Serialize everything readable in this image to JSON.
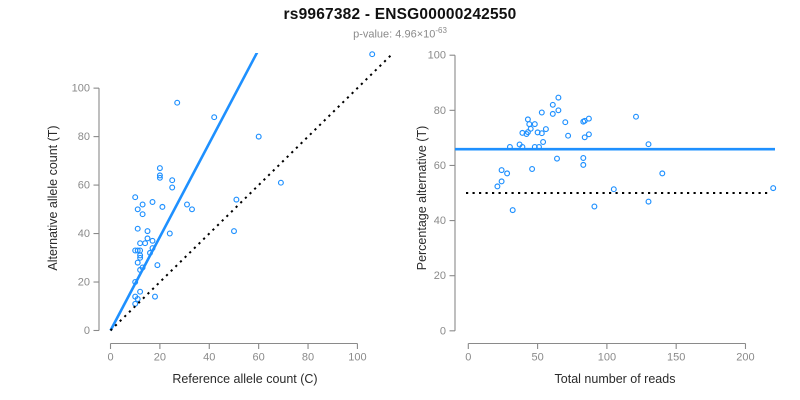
{
  "title": "rs9967382 - ENSG00000242550",
  "subtitle": {
    "label": "p-value: ",
    "value": "4.96×10",
    "exponent": "-63"
  },
  "colors": {
    "accent": "#1E90FF",
    "dotted_line": "#000000",
    "axis": "#8a8a8a",
    "tick_label": "#8a8a8a",
    "axis_title": "#2b2b2b",
    "title": "#111111",
    "subtitle": "#8a8a8a",
    "background": "#ffffff"
  },
  "chart_data": [
    {
      "type": "scatter",
      "panel": "left",
      "xlabel": "Reference allele count (C)",
      "ylabel": "Alternative allele count (T)",
      "xlim": [
        -4.66,
        113.6
      ],
      "ylim": [
        -5.37,
        114.5
      ],
      "xticks": [
        0,
        20,
        40,
        60,
        80,
        100
      ],
      "yticks": [
        0,
        20,
        40,
        60,
        80,
        100
      ],
      "grid": false,
      "legend": "none",
      "marker": "open-circle",
      "points": [
        [
          10,
          55
        ],
        [
          11,
          50
        ],
        [
          13,
          52
        ],
        [
          13,
          48
        ],
        [
          11,
          42
        ],
        [
          27,
          94
        ],
        [
          10,
          33
        ],
        [
          20,
          67
        ],
        [
          17,
          53
        ],
        [
          20,
          64
        ],
        [
          20,
          63
        ],
        [
          11,
          33
        ],
        [
          12,
          36
        ],
        [
          12,
          33
        ],
        [
          14,
          36
        ],
        [
          15,
          41
        ],
        [
          12,
          30
        ],
        [
          12,
          31
        ],
        [
          11,
          28
        ],
        [
          21,
          51
        ],
        [
          15,
          38
        ],
        [
          25,
          59
        ],
        [
          25,
          62
        ],
        [
          17,
          37
        ],
        [
          17,
          34
        ],
        [
          42,
          88
        ],
        [
          10,
          20
        ],
        [
          12,
          25
        ],
        [
          13,
          26
        ],
        [
          16,
          32
        ],
        [
          24,
          40
        ],
        [
          31,
          52
        ],
        [
          33,
          50
        ],
        [
          19,
          27
        ],
        [
          10,
          14
        ],
        [
          12,
          16
        ],
        [
          11,
          13
        ],
        [
          51,
          54
        ],
        [
          10,
          11
        ],
        [
          106,
          114
        ],
        [
          69,
          61
        ],
        [
          60,
          80
        ],
        [
          50,
          41
        ],
        [
          18,
          14
        ]
      ],
      "lines": [
        {
          "name": "fitted-ratio-line",
          "style": "solid",
          "color": "#1E90FF",
          "x1": 0,
          "y1": 0,
          "slope": 1.932
        },
        {
          "name": "identity-line",
          "style": "dotted",
          "color": "#000000",
          "x1": 0,
          "y1": 0,
          "slope": 1
        }
      ]
    },
    {
      "type": "scatter",
      "panel": "right",
      "xlabel": "Total number of reads",
      "ylabel": "Percentage alternative (T)",
      "xlim": [
        -9.6,
        221.3
      ],
      "ylim": [
        -4.6,
        100.8
      ],
      "xticks": [
        0,
        50,
        100,
        150,
        200
      ],
      "yticks": [
        0,
        20,
        40,
        60,
        80,
        100
      ],
      "grid": false,
      "legend": "none",
      "marker": "open-circle",
      "points": [
        [
          65,
          84.6
        ],
        [
          61,
          82
        ],
        [
          65,
          80
        ],
        [
          61,
          78.7
        ],
        [
          53,
          79.2
        ],
        [
          121,
          77.7
        ],
        [
          43,
          76.7
        ],
        [
          87,
          77
        ],
        [
          70,
          75.7
        ],
        [
          84,
          76.2
        ],
        [
          83,
          75.9
        ],
        [
          44,
          75
        ],
        [
          48,
          75
        ],
        [
          45,
          73.3
        ],
        [
          50,
          72
        ],
        [
          56,
          73.2
        ],
        [
          42,
          71.4
        ],
        [
          43,
          72.1
        ],
        [
          39,
          71.8
        ],
        [
          72,
          70.8
        ],
        [
          53,
          71.7
        ],
        [
          84,
          70.2
        ],
        [
          87,
          71.3
        ],
        [
          54,
          68.5
        ],
        [
          51,
          66.7
        ],
        [
          130,
          67.7
        ],
        [
          30,
          66.7
        ],
        [
          37,
          67.6
        ],
        [
          39,
          66.7
        ],
        [
          48,
          66.7
        ],
        [
          64,
          62.5
        ],
        [
          83,
          62.7
        ],
        [
          83,
          60.2
        ],
        [
          46,
          58.7
        ],
        [
          24,
          58.3
        ],
        [
          28,
          57.1
        ],
        [
          24,
          54.2
        ],
        [
          105,
          51.4
        ],
        [
          21,
          52.4
        ],
        [
          220,
          51.8
        ],
        [
          130,
          46.9
        ],
        [
          140,
          57.1
        ],
        [
          91,
          45.1
        ],
        [
          32,
          43.8
        ]
      ],
      "hlines": [
        {
          "name": "mean-percentage-line",
          "style": "solid",
          "color": "#1E90FF",
          "y": 65.9
        },
        {
          "name": "fifty-percent-line",
          "style": "dotted",
          "color": "#000000",
          "y": 50
        }
      ]
    }
  ]
}
